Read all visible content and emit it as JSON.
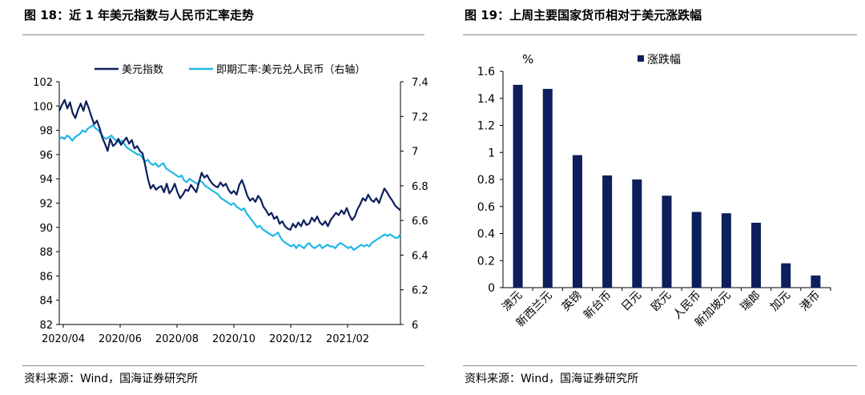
{
  "colors": {
    "usd_index": "#0d1f5c",
    "usdcny": "#1fb8e6",
    "bar": "#0d1f5c",
    "rule": "#8a8a8a"
  },
  "left_panel": {
    "title": "图 18：近 1 年美元指数与人民币汇率走势",
    "source": "资料来源：Wind，国海证券研究所"
  },
  "right_panel": {
    "title": "图 19：上周主要国家货币相对于美元涨跌幅",
    "source": "资料来源：Wind，国海证券研究所"
  },
  "chart_data": [
    {
      "type": "line",
      "title": "",
      "x_ticks": [
        "2020/04",
        "2020/06",
        "2020/08",
        "2020/10",
        "2020/12",
        "2021/02"
      ],
      "y_left": {
        "range": [
          82,
          102
        ],
        "ticks": [
          "82",
          "84",
          "86",
          "88",
          "90",
          "92",
          "94",
          "96",
          "98",
          "100",
          "102"
        ]
      },
      "y_right": {
        "range": [
          6,
          7.4
        ],
        "ticks": [
          "6",
          "6.2",
          "6.4",
          "6.6",
          "6.8",
          "7",
          "7.2",
          "7.4"
        ]
      },
      "grid": false,
      "legend_position": "top",
      "series": [
        {
          "name": "美元指数",
          "axis": "left",
          "values": [
            99.6,
            100.1,
            100.5,
            99.8,
            100.3,
            99.4,
            99.0,
            99.7,
            100.2,
            99.6,
            100.4,
            99.8,
            99.1,
            98.5,
            98.8,
            98.2,
            97.4,
            96.9,
            96.3,
            97.3,
            96.7,
            96.9,
            97.3,
            96.8,
            97.1,
            97.4,
            96.9,
            97.2,
            96.5,
            96.7,
            96.3,
            96.1,
            95.1,
            94.0,
            93.2,
            93.5,
            93.1,
            93.3,
            93.4,
            92.9,
            93.6,
            92.8,
            93.1,
            93.6,
            92.9,
            92.4,
            92.7,
            93.1,
            93.0,
            93.5,
            93.2,
            92.9,
            93.7,
            94.5,
            94.1,
            94.3,
            93.9,
            93.6,
            93.4,
            93.3,
            93.7,
            93.4,
            93.6,
            93.1,
            92.8,
            93.0,
            92.7,
            93.5,
            93.9,
            93.3,
            92.6,
            92.2,
            92.4,
            92.1,
            92.6,
            92.3,
            91.7,
            91.4,
            91.0,
            91.2,
            90.7,
            90.9,
            90.3,
            90.5,
            90.1,
            89.9,
            89.8,
            90.3,
            90.0,
            90.4,
            90.1,
            90.6,
            90.2,
            90.3,
            90.8,
            90.5,
            90.9,
            90.4,
            90.2,
            90.5,
            90.1,
            90.6,
            90.9,
            91.2,
            91.0,
            91.4,
            91.1,
            91.6,
            91.0,
            90.6,
            90.9,
            91.5,
            91.9,
            92.4,
            92.2,
            92.7,
            92.3,
            92.1,
            92.4,
            92.0,
            92.6,
            93.2,
            92.9,
            92.5,
            92.2,
            91.8,
            91.6,
            91.4
          ]
        },
        {
          "name": "即期汇率:美元兑人民币（右轴）",
          "axis": "right",
          "values": [
            7.07,
            7.08,
            7.07,
            7.09,
            7.08,
            7.06,
            7.08,
            7.09,
            7.1,
            7.12,
            7.11,
            7.13,
            7.14,
            7.15,
            7.13,
            7.12,
            7.1,
            7.08,
            7.07,
            7.08,
            7.09,
            7.07,
            7.06,
            7.05,
            7.06,
            7.04,
            7.02,
            7.01,
            7.0,
            6.99,
            6.98,
            6.98,
            6.96,
            6.94,
            6.95,
            6.93,
            6.92,
            6.93,
            6.91,
            6.92,
            6.93,
            6.9,
            6.89,
            6.88,
            6.87,
            6.86,
            6.85,
            6.86,
            6.83,
            6.82,
            6.84,
            6.83,
            6.82,
            6.81,
            6.83,
            6.82,
            6.8,
            6.79,
            6.78,
            6.77,
            6.76,
            6.75,
            6.73,
            6.72,
            6.71,
            6.7,
            6.69,
            6.7,
            6.68,
            6.67,
            6.66,
            6.67,
            6.64,
            6.62,
            6.6,
            6.58,
            6.56,
            6.57,
            6.55,
            6.54,
            6.53,
            6.52,
            6.51,
            6.52,
            6.53,
            6.5,
            6.48,
            6.47,
            6.46,
            6.45,
            6.46,
            6.44,
            6.46,
            6.45,
            6.44,
            6.46,
            6.47,
            6.45,
            6.44,
            6.45,
            6.46,
            6.44,
            6.45,
            6.46,
            6.45,
            6.45,
            6.44,
            6.46,
            6.47,
            6.46,
            6.45,
            6.44,
            6.45,
            6.43,
            6.44,
            6.45,
            6.46,
            6.45,
            6.46,
            6.45,
            6.47,
            6.48,
            6.49,
            6.5,
            6.51,
            6.52,
            6.51,
            6.52,
            6.51,
            6.5,
            6.5,
            6.52
          ]
        }
      ]
    },
    {
      "type": "bar",
      "title": "",
      "ylabel": "%",
      "categories": [
        "澳元",
        "新西兰元",
        "英镑",
        "新台币",
        "日元",
        "欧元",
        "人民币",
        "新加坡元",
        "瑞郎",
        "加元",
        "港币"
      ],
      "series": [
        {
          "name": "涨跌幅",
          "values": [
            1.5,
            1.47,
            0.98,
            0.83,
            0.8,
            0.68,
            0.56,
            0.55,
            0.48,
            0.18,
            0.09
          ]
        }
      ],
      "ylim": [
        0,
        1.6
      ],
      "y_ticks": [
        "0",
        "0.2",
        "0.4",
        "0.6",
        "0.8",
        "1",
        "1.2",
        "1.4",
        "1.6"
      ],
      "grid": false,
      "legend_position": "top"
    }
  ]
}
